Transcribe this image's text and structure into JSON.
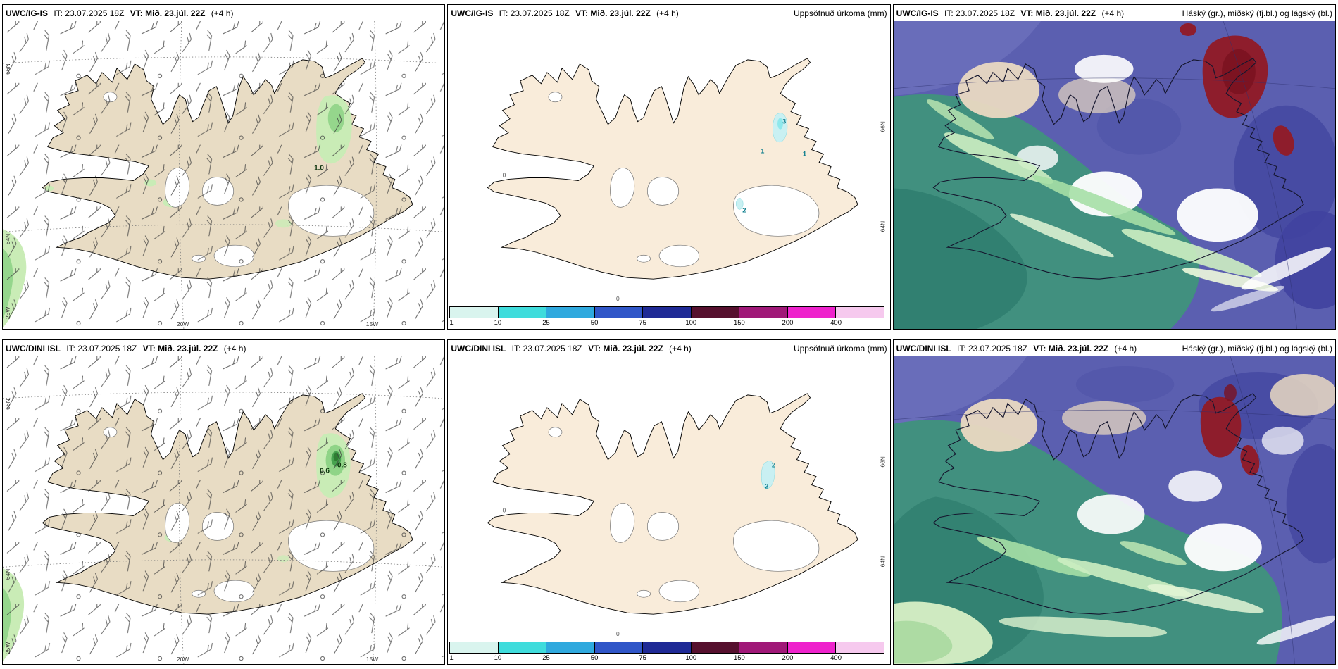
{
  "headers": {
    "model_top": "UWC/IG-IS",
    "model_bottom": "UWC/DINI ISL",
    "it": "IT: 23.07.2025 18Z",
    "vt": "VT: Mið. 23.júl. 22Z",
    "offset": "(+4 h)",
    "precip_title": "Uppsöfnuð úrkoma (mm)",
    "cloud_title": "Háský (gr.), miðský (fj.bl.) og lágský (bl.)"
  },
  "geo": {
    "lat_66": "66N",
    "lat_64": "64N",
    "lon_20": "20W",
    "lon_15": "15W",
    "lon_25": "25W"
  },
  "legend": {
    "values": [
      "1",
      "10",
      "25",
      "50",
      "75",
      "100",
      "150",
      "200",
      "400"
    ],
    "colors": [
      "#d9f4ee",
      "#3fdcdc",
      "#2fa9de",
      "#3056c8",
      "#1f2a96",
      "#56102e",
      "#a01878",
      "#ee22cc",
      "#f6c9ee"
    ]
  },
  "values": {
    "wind_top": "1.0",
    "wind_bot_a": "0.6",
    "wind_bot_b": "0.8",
    "precip_top_a": "3",
    "precip_top_b": "1",
    "precip_top_c": "1",
    "precip_top_d": "2",
    "precip_bot_a": "2",
    "precip_bot_b": "2",
    "zero": "0"
  },
  "colors": {
    "land_wind": "#e8dcc4",
    "land_precip": "#f9ecda",
    "sea": "#ffffff",
    "green_light": "#c9ecb6",
    "green_mid": "#8fd487",
    "green_dark": "#47a34f",
    "green_core": "#2e7d32",
    "cloud_base": "#5b5fb0",
    "cloud_teal": "#41907f",
    "cloud_teal_dark": "#2f7e6f",
    "cloud_slate_dark": "#4549a2",
    "cloud_red": "#8e1d2c",
    "precip_spot": "#c9f0f2"
  }
}
